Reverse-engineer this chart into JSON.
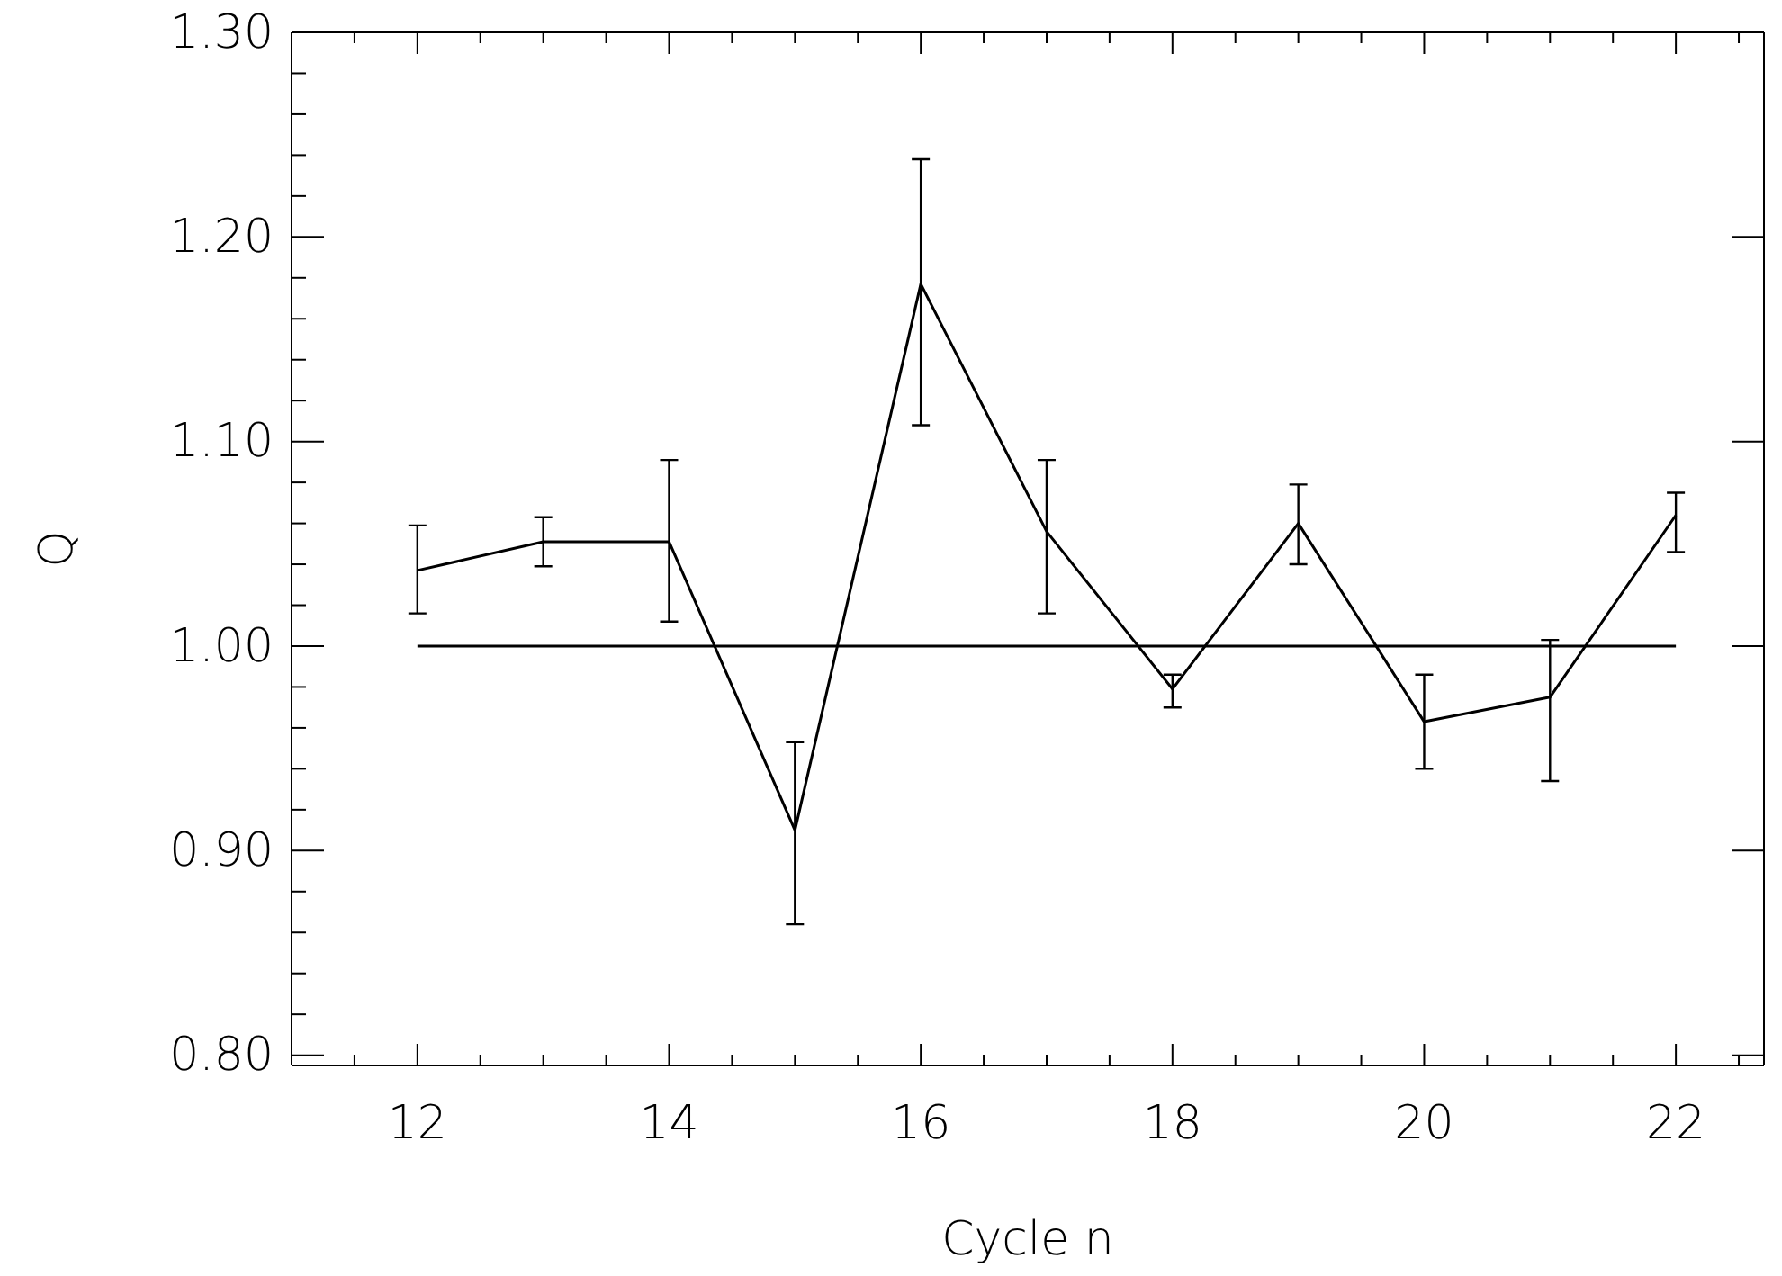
{
  "chart_data": {
    "type": "line",
    "xlabel": "Cycle n",
    "ylabel": "Q",
    "xlim": [
      11,
      22.7
    ],
    "xticks": [
      {
        "value": 11.5,
        "label": null
      },
      {
        "value": 12,
        "label": "12"
      },
      {
        "value": 12.5,
        "label": null
      },
      {
        "value": 13,
        "label": null
      },
      {
        "value": 13.5,
        "label": null
      },
      {
        "value": 14,
        "label": "14"
      },
      {
        "value": 14.5,
        "label": null
      },
      {
        "value": 15,
        "label": null
      },
      {
        "value": 15.5,
        "label": null
      },
      {
        "value": 16,
        "label": "16"
      },
      {
        "value": 16.5,
        "label": null
      },
      {
        "value": 17,
        "label": null
      },
      {
        "value": 17.5,
        "label": null
      },
      {
        "value": 18,
        "label": "18"
      },
      {
        "value": 18.5,
        "label": null
      },
      {
        "value": 19,
        "label": null
      },
      {
        "value": 19.5,
        "label": null
      },
      {
        "value": 20,
        "label": "20"
      },
      {
        "value": 20.5,
        "label": null
      },
      {
        "value": 21,
        "label": null
      },
      {
        "value": 21.5,
        "label": null
      },
      {
        "value": 22,
        "label": "22"
      },
      {
        "value": 22.5,
        "label": null
      }
    ],
    "ylim": [
      0.795,
      1.3
    ],
    "yticks": [
      {
        "value": 0.8,
        "label": "0.80"
      },
      {
        "value": 0.9,
        "label": "0.90"
      },
      {
        "value": 1.0,
        "label": "1.00"
      },
      {
        "value": 1.1,
        "label": "1.10"
      },
      {
        "value": 1.2,
        "label": "1.20"
      },
      {
        "value": 1.3,
        "label": "1.30"
      }
    ],
    "grid": false,
    "marker": "none",
    "line_style": "solid",
    "series": [
      {
        "color": "#000000",
        "x": [
          12,
          13,
          14,
          15,
          16,
          17,
          18,
          19,
          20,
          21,
          22
        ],
        "values": [
          1.037,
          1.051,
          1.051,
          0.91,
          1.177,
          1.056,
          0.979,
          1.06,
          0.963,
          0.975,
          1.064
        ],
        "errors": [
          [
            1.016,
            1.059
          ],
          [
            1.039,
            1.063
          ],
          [
            1.012,
            1.091
          ],
          [
            0.864,
            0.953
          ],
          [
            1.108,
            1.238
          ],
          [
            1.016,
            1.091
          ],
          [
            0.97,
            0.986
          ],
          [
            1.04,
            1.079
          ],
          [
            0.94,
            0.986
          ],
          [
            0.934,
            1.003
          ],
          [
            1.046,
            1.075
          ]
        ]
      },
      {
        "color": "#000000",
        "x": [
          12,
          22
        ],
        "values": [
          1.0,
          1.0
        ]
      }
    ]
  }
}
